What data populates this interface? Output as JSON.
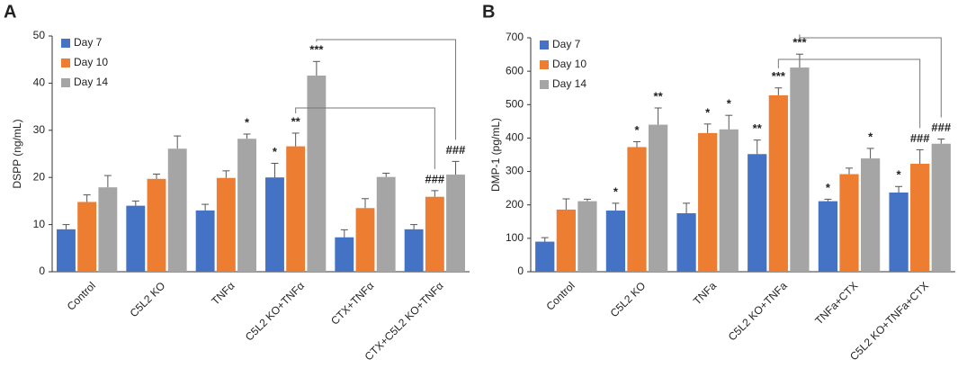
{
  "chart_data": [
    {
      "type": "bar",
      "panel": "A",
      "ylabel": "DSPP (ng/mL)",
      "categories": [
        "Control",
        "C5L2 KO",
        "TNFα",
        "C5L2 KO+TNFα",
        "CTX+TNFα",
        "CTX+C5L2 KO+TNFα"
      ],
      "series": [
        {
          "name": "Day 7",
          "color": "#4472c4",
          "values": [
            9,
            14,
            13,
            20,
            7.3,
            9
          ],
          "errors": [
            1,
            1,
            1.3,
            3,
            1.6,
            1
          ],
          "annotations": [
            null,
            null,
            null,
            "*",
            null,
            null
          ]
        },
        {
          "name": "Day 10",
          "color": "#ed7d31",
          "values": [
            14.8,
            19.7,
            19.9,
            26.6,
            13.5,
            15.9
          ],
          "errors": [
            1.5,
            1,
            1.5,
            2.8,
            2,
            1.3
          ],
          "annotations": [
            null,
            null,
            null,
            "**",
            null,
            "###"
          ]
        },
        {
          "name": "Day 14",
          "color": "#a5a5a5",
          "values": [
            17.9,
            26.1,
            28.2,
            41.6,
            20.1,
            20.6
          ],
          "errors": [
            2.5,
            2.7,
            1,
            3,
            0.8,
            2.8
          ],
          "annotations": [
            null,
            null,
            "*",
            "***",
            null,
            "###"
          ]
        }
      ],
      "ylim": [
        0,
        50
      ],
      "yticks": [
        0,
        10,
        20,
        30,
        40,
        50
      ],
      "legend": "upper left"
    },
    {
      "type": "bar",
      "panel": "B",
      "ylabel": "DMP-1 (pg/mL)",
      "categories": [
        "Control",
        "C5L2 KO",
        "TNFa",
        "C5L2 KO+TNFa",
        "TNFa+CTX",
        "C5L2 KO+TNFa+CTX"
      ],
      "series": [
        {
          "name": "Day 7",
          "color": "#4472c4",
          "values": [
            90,
            183,
            175,
            352,
            211,
            237
          ],
          "errors": [
            12,
            22,
            30,
            42,
            6,
            18
          ],
          "annotations": [
            null,
            "*",
            null,
            "**",
            "*",
            "*"
          ]
        },
        {
          "name": "Day 10",
          "color": "#ed7d31",
          "values": [
            186,
            373,
            415,
            528,
            292,
            323
          ],
          "errors": [
            32,
            16,
            27,
            22,
            18,
            42
          ],
          "annotations": [
            null,
            "*",
            "*",
            "***",
            null,
            "###"
          ]
        },
        {
          "name": "Day 14",
          "color": "#a5a5a5",
          "values": [
            211,
            440,
            426,
            611,
            339,
            383
          ],
          "errors": [
            6,
            50,
            42,
            40,
            30,
            14
          ],
          "annotations": [
            null,
            "**",
            "*",
            "***",
            "*",
            "###"
          ]
        }
      ],
      "ylim": [
        0,
        700
      ],
      "yticks": [
        0,
        100,
        200,
        300,
        400,
        500,
        600,
        700
      ],
      "legend": "upper left"
    }
  ]
}
